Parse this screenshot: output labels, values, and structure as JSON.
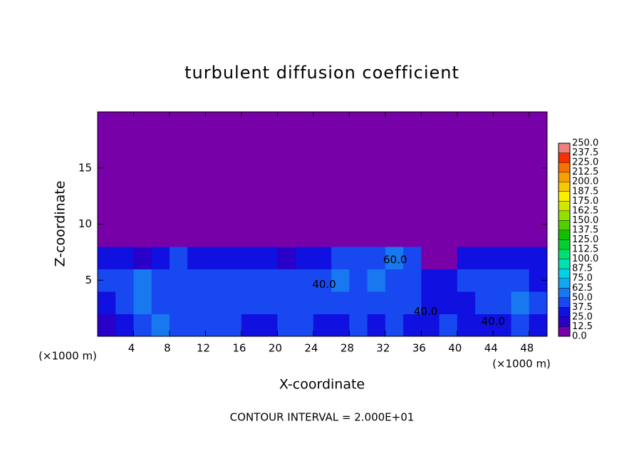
{
  "chart_data": {
    "type": "heatmap",
    "title": "turbulent diffusion coefficient",
    "x_label": "X-coordinate",
    "y_label": "Z-coordinate",
    "x_unit": "(×1000 m)",
    "y_unit": "(×1000 m)",
    "note": "CONTOUR INTERVAL = 2.000E+01",
    "xlim": [
      0,
      50
    ],
    "ylim": [
      0,
      20
    ],
    "xticks": [
      4,
      8,
      12,
      16,
      20,
      24,
      28,
      32,
      36,
      40,
      44,
      48
    ],
    "yticks": [
      5,
      10,
      15
    ],
    "x": [
      1,
      3,
      5,
      7,
      9,
      11,
      13,
      15,
      17,
      19,
      21,
      23,
      25,
      27,
      29,
      31,
      33,
      35,
      37,
      39,
      41,
      43,
      45,
      47,
      49
    ],
    "y": [
      1,
      3,
      5,
      7,
      9,
      11,
      13,
      15,
      17,
      19
    ],
    "z": [
      [
        20,
        35,
        45,
        55,
        40,
        45,
        42,
        38,
        30,
        35,
        40,
        38,
        30,
        28,
        38,
        35,
        40,
        30,
        35,
        38,
        30,
        28,
        35,
        45,
        30
      ],
      [
        35,
        40,
        50,
        45,
        42,
        40,
        38,
        45,
        40,
        45,
        48,
        42,
        40,
        38,
        42,
        45,
        40,
        45,
        35,
        30,
        35,
        40,
        45,
        50,
        40
      ],
      [
        40,
        45,
        50,
        45,
        48,
        45,
        40,
        45,
        48,
        45,
        42,
        45,
        48,
        50,
        45,
        55,
        45,
        40,
        30,
        35,
        40,
        45,
        45,
        40,
        35
      ],
      [
        25,
        30,
        20,
        35,
        40,
        35,
        30,
        25,
        35,
        30,
        20,
        25,
        35,
        40,
        40,
        45,
        50,
        40,
        10,
        5,
        25,
        30,
        35,
        30,
        28
      ],
      [
        0,
        0,
        0,
        0,
        0,
        0,
        0,
        0,
        0,
        0,
        0,
        0,
        0,
        0,
        0,
        0,
        0,
        0,
        0,
        0,
        0,
        0,
        0,
        0,
        0
      ],
      [
        0,
        0,
        0,
        0,
        0,
        0,
        0,
        0,
        0,
        0,
        0,
        0,
        0,
        0,
        0,
        0,
        0,
        0,
        0,
        0,
        0,
        0,
        0,
        0,
        0
      ],
      [
        0,
        0,
        0,
        0,
        0,
        0,
        0,
        0,
        0,
        0,
        0,
        0,
        0,
        0,
        0,
        0,
        0,
        0,
        0,
        0,
        0,
        0,
        0,
        0,
        0
      ],
      [
        0,
        0,
        0,
        0,
        0,
        0,
        0,
        0,
        0,
        0,
        0,
        0,
        0,
        0,
        0,
        0,
        0,
        0,
        0,
        0,
        0,
        0,
        0,
        0,
        0
      ],
      [
        0,
        0,
        0,
        0,
        0,
        0,
        0,
        0,
        0,
        0,
        0,
        0,
        0,
        0,
        0,
        0,
        0,
        0,
        0,
        0,
        0,
        0,
        0,
        0,
        0
      ],
      [
        0,
        0,
        0,
        0,
        0,
        0,
        0,
        0,
        0,
        0,
        0,
        0,
        0,
        0,
        0,
        0,
        0,
        0,
        0,
        0,
        0,
        0,
        0,
        0,
        0
      ]
    ],
    "contour_labels": [
      {
        "x": 25.2,
        "y": 4.6,
        "text": "40.0"
      },
      {
        "x": 36.5,
        "y": 2.2,
        "text": "40.0"
      },
      {
        "x": 44,
        "y": 1.3,
        "text": "40.0"
      },
      {
        "x": 33.1,
        "y": 6.8,
        "text": "60.0"
      }
    ],
    "colorbar": {
      "ticks": [
        {
          "value": 0,
          "label": "0.0"
        },
        12.5,
        {
          "value": 25,
          "label": "25.0"
        },
        37.5,
        {
          "value": 50,
          "label": "50.0"
        },
        62.5,
        {
          "value": 75,
          "label": "75.0"
        },
        87.5,
        {
          "value": 100,
          "label": "100.0"
        },
        112.5,
        {
          "value": 125,
          "label": "125.0"
        },
        137.5,
        {
          "value": 150,
          "label": "150.0"
        },
        162.5,
        {
          "value": 175,
          "label": "175.0"
        },
        187.5,
        {
          "value": 200,
          "label": "200.0"
        },
        212.5,
        {
          "value": 225,
          "label": "225.0"
        },
        237.5,
        {
          "value": 250,
          "label": "250.0"
        }
      ],
      "colors": [
        "#7800a8",
        "#2800c8",
        "#1010e0",
        "#1848f0",
        "#1878f0",
        "#10a8f0",
        "#00d0e8",
        "#00e0b0",
        "#00e070",
        "#00d030",
        "#10c000",
        "#50d000",
        "#90e000",
        "#d0e800",
        "#f8f000",
        "#f8c800",
        "#f8a000",
        "#f87000",
        "#f83000",
        "#f08080"
      ]
    }
  }
}
